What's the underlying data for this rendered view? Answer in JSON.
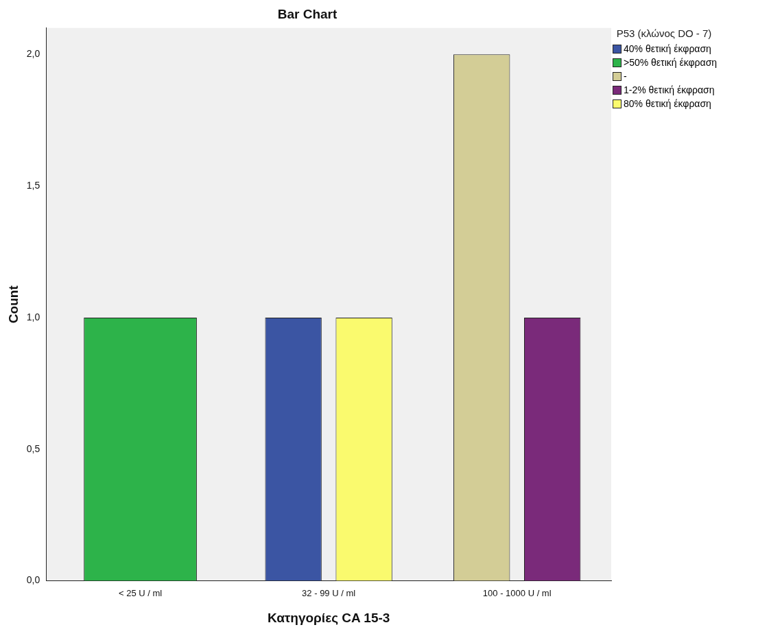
{
  "chart_data": {
    "type": "bar",
    "title": "Bar Chart",
    "xlabel": "Κατηγορίες CA 15-3",
    "ylabel": "Count",
    "legend_title": "P53 (κλώνος DO - 7)",
    "legend": "top right",
    "categories": [
      "< 25 U / ml",
      "32 - 99 U / ml",
      "100 - 1000 U / ml"
    ],
    "series": [
      {
        "name": "40% θετική έκφραση",
        "color": "#3b55a3",
        "values": [
          null,
          1,
          null
        ]
      },
      {
        "name": ">50% θετική έκφραση",
        "color": "#2db34a",
        "values": [
          1,
          null,
          null
        ]
      },
      {
        "name": "-",
        "color": "#d3cd96",
        "values": [
          null,
          null,
          2
        ]
      },
      {
        "name": "1-2% θετική έκφραση",
        "color": "#7a2a7a",
        "values": [
          null,
          null,
          1
        ]
      },
      {
        "name": "80% θετική έκφραση",
        "color": "#fafa6e",
        "values": [
          null,
          1,
          null
        ]
      }
    ],
    "ylim": [
      0,
      2.1
    ],
    "yticks": [
      {
        "value": 0,
        "label": "0,0"
      },
      {
        "value": 0.5,
        "label": "0,5"
      },
      {
        "value": 1,
        "label": "1,0"
      },
      {
        "value": 1.5,
        "label": "1,5"
      },
      {
        "value": 2,
        "label": "2,0"
      }
    ],
    "grid": false
  }
}
